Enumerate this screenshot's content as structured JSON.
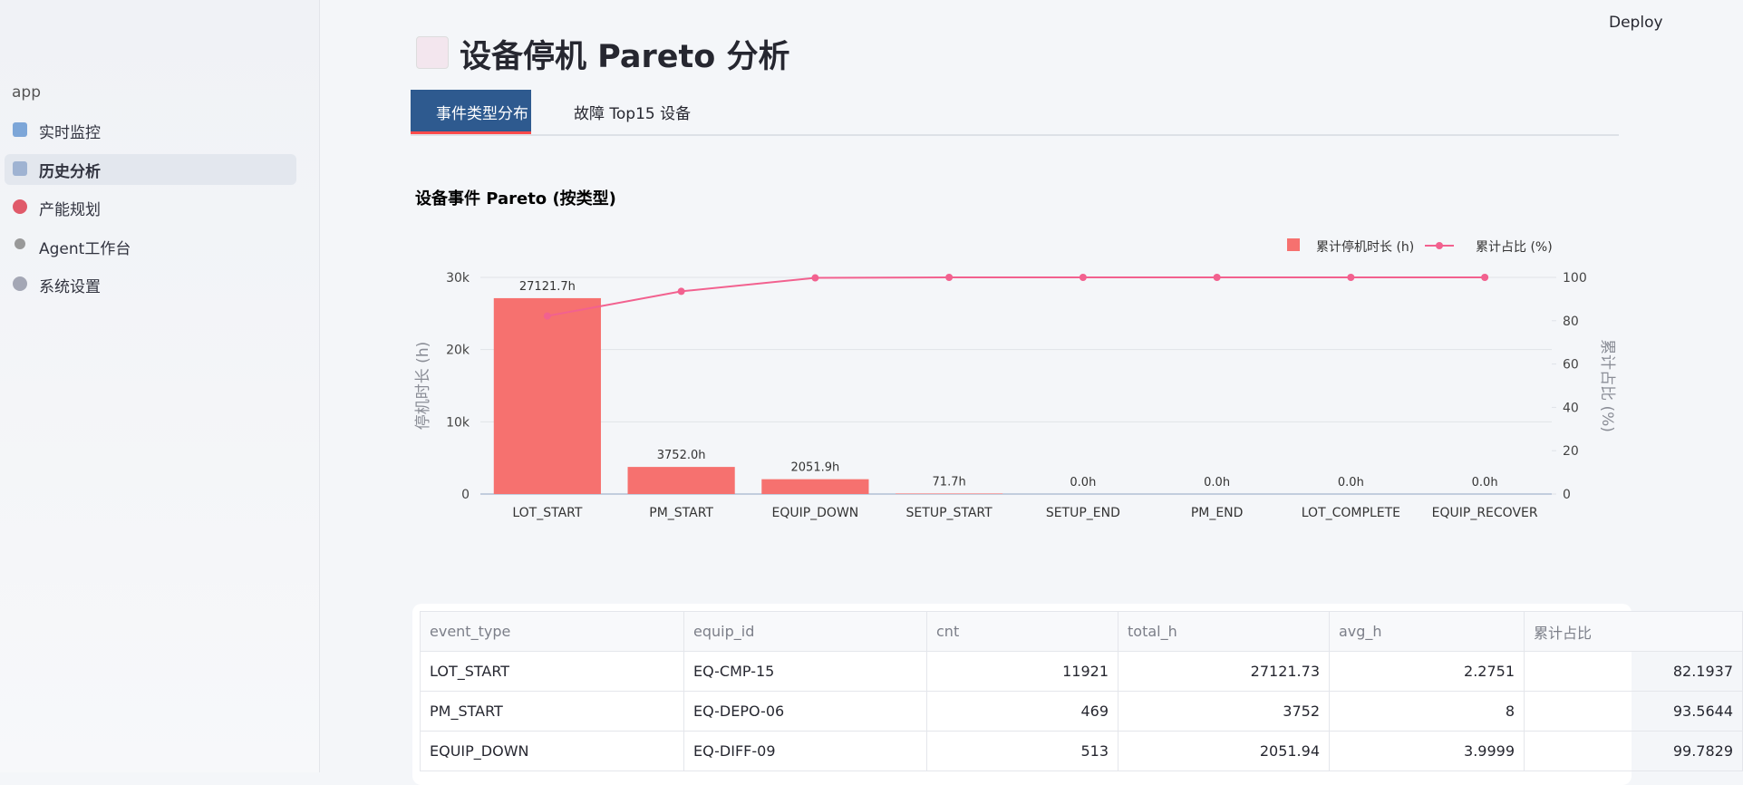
{
  "sidebar": {
    "app": "app",
    "items": [
      "实时监控",
      "历史分析",
      "产能规划",
      "Agent工作台",
      "系统设置"
    ]
  },
  "header": {
    "deploy": "Deploy",
    "title": "设备停机 Pareto 分析"
  },
  "tabs": [
    "事件类型分布",
    "故障 Top15 设备"
  ],
  "chart_data": {
    "type": "bar",
    "title": "设备事件 Pareto (按类型)",
    "categories": [
      "LOT_START",
      "PM_START",
      "EQUIP_DOWN",
      "SETUP_START",
      "SETUP_END",
      "PM_END",
      "LOT_COMPLETE",
      "EQUIP_RECOVER"
    ],
    "series": [
      {
        "name": "累计停机时长 (h)",
        "color": "#f6716f",
        "values": [
          27121.7,
          3752.0,
          2051.9,
          71.7,
          0.0,
          0.0,
          0.0,
          0.0
        ],
        "value_labels": [
          "27121.7h",
          "3752.0h",
          "2051.9h",
          "71.7h",
          "0.0h",
          "0.0h",
          "0.0h",
          "0.0h"
        ]
      },
      {
        "name": "累计占比 (%)",
        "type": "line",
        "axis": "y2",
        "color": "#f2618f",
        "values": [
          82.19,
          93.56,
          99.78,
          100,
          100,
          100,
          100,
          100
        ]
      }
    ],
    "y_label": "停机时长 (h)",
    "y2_label": "累计占比 (%)",
    "ylim": [
      0,
      30000
    ],
    "yticks": [
      0,
      {
        "value": 10000,
        "label": "10k"
      },
      {
        "value": 20000,
        "label": "20k"
      },
      {
        "value": 30000,
        "label": "30k"
      }
    ],
    "y2lim": [
      0,
      100
    ],
    "y2ticks": [
      0,
      20,
      40,
      60,
      80,
      100
    ],
    "grid": true,
    "legend": "top-right"
  },
  "table": {
    "columns": [
      "event_type",
      "equip_id",
      "cnt",
      "total_h",
      "avg_h",
      "累计占比"
    ],
    "rows": [
      [
        "LOT_START",
        "EQ-CMP-15",
        "11921",
        "27121.73",
        "2.2751",
        "82.1937"
      ],
      [
        "PM_START",
        "EQ-DEPO-06",
        "469",
        "3752",
        "8",
        "93.5644"
      ],
      [
        "EQUIP_DOWN",
        "EQ-DIFF-09",
        "513",
        "2051.94",
        "3.9999",
        "99.7829"
      ]
    ]
  }
}
